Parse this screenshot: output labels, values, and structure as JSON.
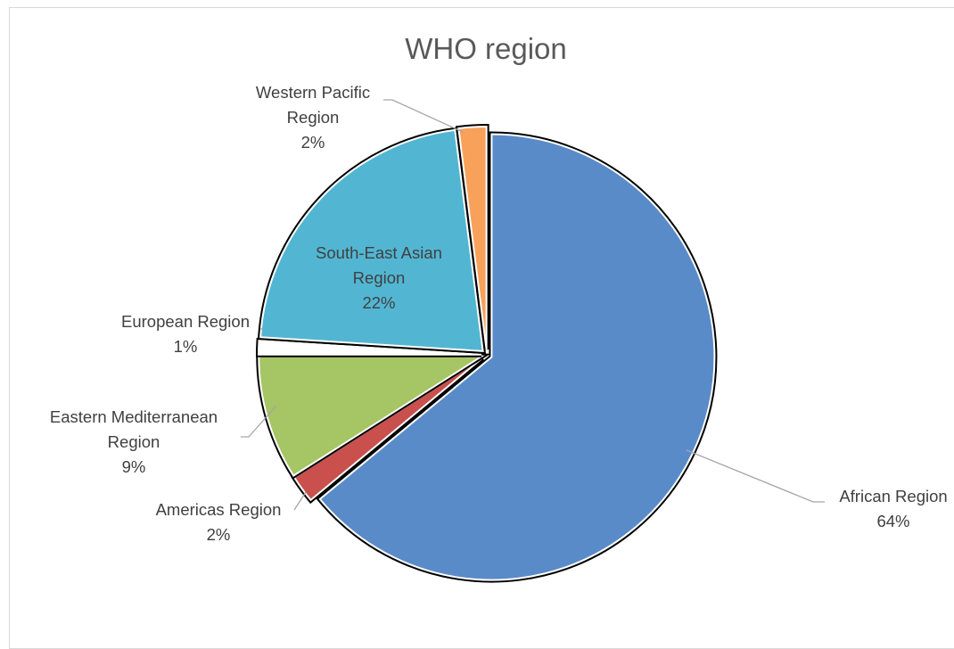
{
  "chart_data": {
    "type": "pie",
    "title": "WHO region",
    "categories": [
      "African Region",
      "Americas Region",
      "Eastern Mediterranean Region",
      "European Region",
      "South-East Asian Region",
      "Western Pacific Region"
    ],
    "values": [
      64,
      2,
      9,
      1,
      22,
      2
    ],
    "labels": [
      {
        "lines": [
          "African Region",
          "64%"
        ]
      },
      {
        "lines": [
          "Americas Region",
          "2%"
        ]
      },
      {
        "lines": [
          "Eastern Mediterranean",
          "Region",
          "9%"
        ]
      },
      {
        "lines": [
          "European Region",
          "1%"
        ]
      },
      {
        "lines": [
          "South-East Asian",
          "Region",
          "22%"
        ]
      },
      {
        "lines": [
          "Western Pacific",
          "Region",
          "2%"
        ]
      }
    ],
    "colors": [
      "#5a8bc9",
      "#c9504d",
      "#a6c564",
      "#ffffff",
      "#52b6d3",
      "#f8a15a"
    ],
    "legend": "none"
  }
}
